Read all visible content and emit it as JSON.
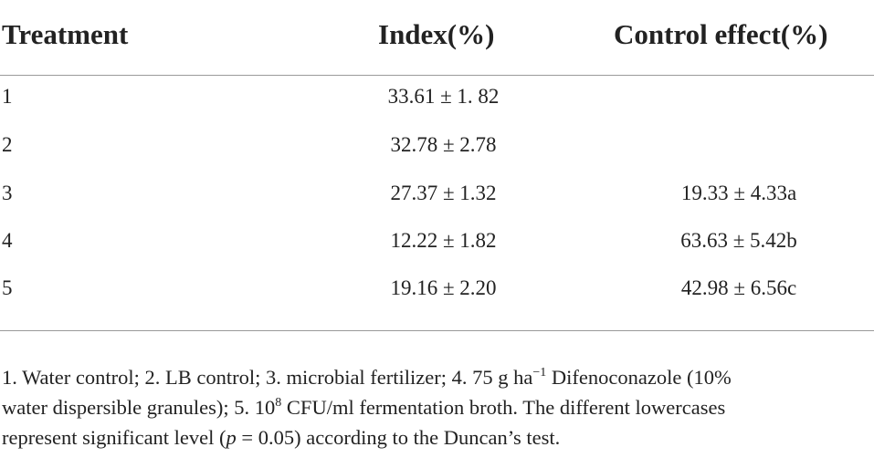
{
  "table": {
    "headers": [
      "Treatment",
      "Index(%)",
      "Control effect(%)"
    ],
    "rows": [
      {
        "treatment": "1",
        "index": "33.61 ± 1. 82",
        "control": ""
      },
      {
        "treatment": "2",
        "index": "32.78 ± 2.78",
        "control": ""
      },
      {
        "treatment": "3",
        "index": "27.37 ± 1.32",
        "control": "19.33 ± 4.33a"
      },
      {
        "treatment": "4",
        "index": "12.22 ± 1.82",
        "control": "63.63 ± 5.42b"
      },
      {
        "treatment": "5",
        "index": "19.16 ± 2.20",
        "control": "42.98 ± 6.56c"
      }
    ]
  },
  "footnote": {
    "line1_a": "1. Water control; 2. LB control; 3. microbial fertilizer; 4. 75 g ha",
    "line1_sup": "−1",
    "line1_b": " Difenoconazole (10%",
    "line2_a": "water dispersible granules); 5. 10",
    "line2_sup": "8",
    "line2_b": " CFU/ml fermentation broth. The different lowercases",
    "line3_a": "represent significant level (",
    "line3_p": "p",
    "line3_b": " = 0.05) according to the Duncan’s test."
  }
}
